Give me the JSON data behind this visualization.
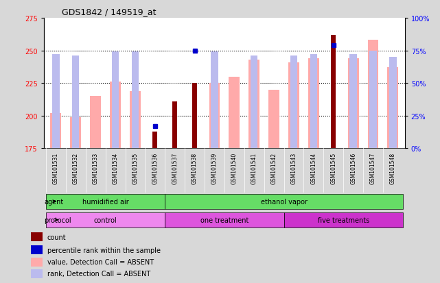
{
  "title": "GDS1842 / 149519_at",
  "samples": [
    "GSM101531",
    "GSM101532",
    "GSM101533",
    "GSM101534",
    "GSM101535",
    "GSM101536",
    "GSM101537",
    "GSM101538",
    "GSM101539",
    "GSM101540",
    "GSM101541",
    "GSM101542",
    "GSM101543",
    "GSM101544",
    "GSM101545",
    "GSM101546",
    "GSM101547",
    "GSM101548"
  ],
  "value_absent": [
    202,
    199,
    215,
    226,
    219,
    null,
    null,
    null,
    225,
    230,
    243,
    220,
    241,
    244,
    null,
    244,
    258,
    237
  ],
  "rank_absent_pct": [
    72,
    71,
    null,
    74,
    74,
    null,
    null,
    null,
    74,
    null,
    71,
    null,
    71,
    72,
    null,
    72,
    75,
    70
  ],
  "count_present": [
    null,
    null,
    null,
    null,
    null,
    188,
    211,
    225,
    null,
    null,
    null,
    null,
    null,
    null,
    262,
    null,
    null,
    null
  ],
  "percentile_present_pct": [
    null,
    null,
    null,
    null,
    null,
    17,
    null,
    75,
    null,
    null,
    null,
    null,
    null,
    null,
    79,
    null,
    null,
    null
  ],
  "ylim_left": [
    175,
    275
  ],
  "ylim_right": [
    0,
    100
  ],
  "yticks_left": [
    175,
    200,
    225,
    250,
    275
  ],
  "yticks_right": [
    0,
    25,
    50,
    75,
    100
  ],
  "hlines": [
    200,
    225,
    250
  ],
  "agent_groups": [
    {
      "label": "humidified air",
      "start": 0,
      "end": 5,
      "color": "#66dd66"
    },
    {
      "label": "ethanol vapor",
      "start": 6,
      "end": 17,
      "color": "#66dd66"
    }
  ],
  "protocol_groups": [
    {
      "label": "control",
      "start": 0,
      "end": 5,
      "color": "#ee88ee"
    },
    {
      "label": "one treatment",
      "start": 6,
      "end": 11,
      "color": "#dd55dd"
    },
    {
      "label": "five treatments",
      "start": 12,
      "end": 17,
      "color": "#cc33cc"
    }
  ],
  "color_value_absent": "#ffaaaa",
  "color_rank_absent": "#bbbbee",
  "color_count_present": "#880000",
  "color_percentile_present": "#0000cc",
  "bg_color": "#d8d8d8",
  "plot_bg": "#ffffff"
}
